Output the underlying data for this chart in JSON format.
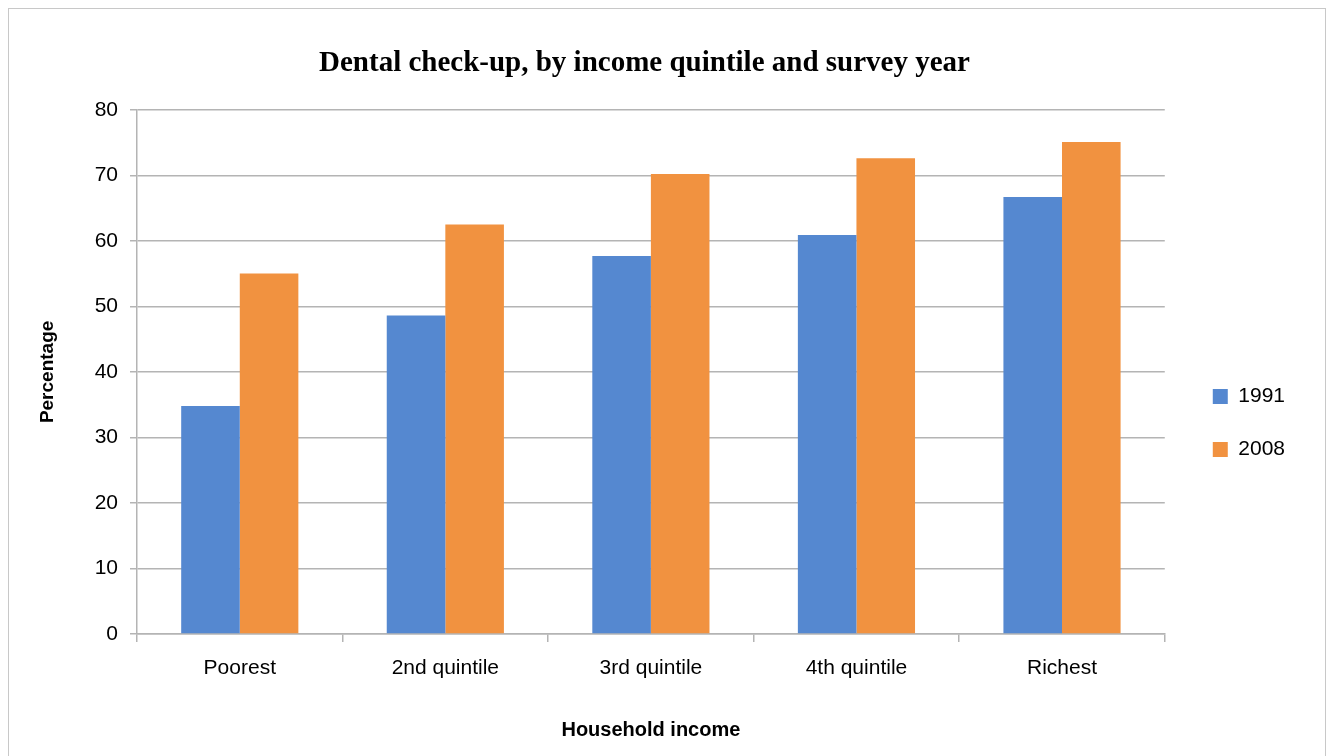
{
  "chart_data": {
    "type": "bar",
    "title": "Dental check-up, by income quintile and survey year",
    "xlabel": "Household income",
    "ylabel": "Percentage",
    "categories": [
      "Poorest",
      "2nd quintile",
      "3rd quintile",
      "4th quintile",
      "Richest"
    ],
    "series": [
      {
        "name": "1991",
        "color": "#5588d0",
        "values": [
          34.8,
          48.6,
          57.7,
          60.9,
          66.7
        ]
      },
      {
        "name": "2008",
        "color": "#f19240",
        "values": [
          55.0,
          62.5,
          70.2,
          72.6,
          75.1
        ]
      }
    ],
    "ylim": [
      0,
      80
    ],
    "yticks": [
      0,
      10,
      20,
      30,
      40,
      50,
      60,
      70,
      80
    ],
    "grid": "y",
    "legend": "right"
  }
}
